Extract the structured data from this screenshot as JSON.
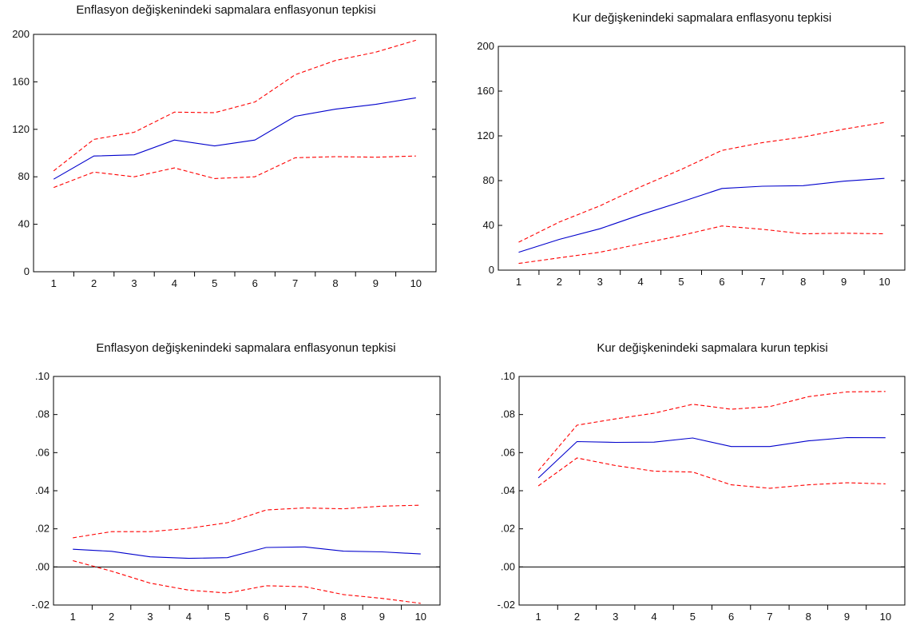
{
  "chart_data": [
    {
      "type": "line",
      "title": "Enflasyon değişkenindeki sapmalara enflasyonun   tepkisi",
      "xlabel": "",
      "ylabel": "",
      "x": [
        1,
        2,
        3,
        4,
        5,
        6,
        7,
        8,
        9,
        10
      ],
      "x_tick_labels": [
        "1",
        "2",
        "3",
        "4",
        "5",
        "6",
        "7",
        "8",
        "9",
        "10"
      ],
      "y_tick_labels": [
        "0",
        "40",
        "80",
        "120",
        "160",
        "200"
      ],
      "y_ticks": [
        0,
        40,
        80,
        120,
        160,
        200
      ],
      "ylim": [
        0,
        200
      ],
      "zero_line": false,
      "series": [
        {
          "role": "response",
          "color": "#0000cc",
          "dashed": false,
          "values": [
            78,
            97.5,
            98.5,
            111,
            106,
            111,
            131,
            137,
            141,
            146.5
          ]
        },
        {
          "role": "upper",
          "color": "#ff0000",
          "dashed": true,
          "values": [
            85,
            111.5,
            117.5,
            134.5,
            134,
            143,
            166,
            178,
            185,
            195
          ]
        },
        {
          "role": "lower",
          "color": "#ff0000",
          "dashed": true,
          "values": [
            71,
            84,
            80,
            87.5,
            78.5,
            80,
            96,
            97,
            96.5,
            97.5
          ]
        }
      ]
    },
    {
      "type": "line",
      "title": "Kur değişkenindeki sapmalara enflasyonu tepkisi",
      "xlabel": "",
      "ylabel": "",
      "x": [
        1,
        2,
        3,
        4,
        5,
        6,
        7,
        8,
        9,
        10
      ],
      "x_tick_labels": [
        "1",
        "2",
        "3",
        "4",
        "5",
        "6",
        "7",
        "8",
        "9",
        "10"
      ],
      "y_tick_labels": [
        "0",
        "40",
        "80",
        "120",
        "160",
        "200"
      ],
      "y_ticks": [
        0,
        40,
        80,
        120,
        160,
        200
      ],
      "ylim": [
        0,
        200
      ],
      "zero_line": false,
      "series": [
        {
          "role": "response",
          "color": "#0000cc",
          "dashed": false,
          "values": [
            16,
            27.5,
            37,
            49.5,
            61,
            73,
            75,
            75.5,
            79.5,
            82
          ]
        },
        {
          "role": "upper",
          "color": "#ff0000",
          "dashed": true,
          "values": [
            25,
            43,
            57.5,
            74.5,
            90,
            107,
            114,
            119,
            126,
            132
          ]
        },
        {
          "role": "lower",
          "color": "#ff0000",
          "dashed": true,
          "values": [
            6,
            11,
            16,
            23.5,
            31,
            39.5,
            36.5,
            32.5,
            33,
            32.5
          ]
        }
      ]
    },
    {
      "type": "line",
      "title": "Enflasyon değişkenindeki sapmalara enflasyonun tepkisi",
      "xlabel": "",
      "ylabel": "",
      "x": [
        1,
        2,
        3,
        4,
        5,
        6,
        7,
        8,
        9,
        10
      ],
      "x_tick_labels": [
        "1",
        "2",
        "3",
        "4",
        "5",
        "6",
        "7",
        "8",
        "9",
        "10"
      ],
      "y_tick_labels": [
        "-.02",
        ".00",
        ".02",
        ".04",
        ".06",
        ".08",
        ".10"
      ],
      "y_ticks": [
        -0.02,
        0,
        0.02,
        0.04,
        0.06,
        0.08,
        0.1
      ],
      "ylim": [
        -0.02,
        0.1
      ],
      "zero_line": true,
      "series": [
        {
          "role": "response",
          "color": "#0000cc",
          "dashed": false,
          "values": [
            0.0093,
            0.0082,
            0.0053,
            0.0045,
            0.0049,
            0.0102,
            0.0105,
            0.0083,
            0.0079,
            0.0068
          ]
        },
        {
          "role": "upper",
          "color": "#ff0000",
          "dashed": true,
          "values": [
            0.0153,
            0.0185,
            0.0185,
            0.0203,
            0.0232,
            0.0299,
            0.031,
            0.0305,
            0.0319,
            0.0324
          ]
        },
        {
          "role": "lower",
          "color": "#ff0000",
          "dashed": true,
          "values": [
            0.0033,
            -0.0022,
            -0.0085,
            -0.0122,
            -0.0137,
            -0.0099,
            -0.0104,
            -0.0145,
            -0.0165,
            -0.0191
          ]
        }
      ]
    },
    {
      "type": "line",
      "title": "Kur değişkenindeki sapmalara kurun tepkisi",
      "xlabel": "",
      "ylabel": "",
      "x": [
        1,
        2,
        3,
        4,
        5,
        6,
        7,
        8,
        9,
        10
      ],
      "x_tick_labels": [
        "1",
        "2",
        "3",
        "4",
        "5",
        "6",
        "7",
        "8",
        "9",
        "10"
      ],
      "y_tick_labels": [
        "-.02",
        ".00",
        ".02",
        ".04",
        ".06",
        ".08",
        ".10"
      ],
      "y_ticks": [
        -0.02,
        0,
        0.02,
        0.04,
        0.06,
        0.08,
        0.1
      ],
      "ylim": [
        -0.02,
        0.1
      ],
      "zero_line": true,
      "series": [
        {
          "role": "response",
          "color": "#0000cc",
          "dashed": false,
          "values": [
            0.0467,
            0.0658,
            0.0654,
            0.0655,
            0.0677,
            0.0632,
            0.0632,
            0.0662,
            0.0679,
            0.0678
          ]
        },
        {
          "role": "upper",
          "color": "#ff0000",
          "dashed": true,
          "values": [
            0.0505,
            0.0744,
            0.0777,
            0.0807,
            0.0854,
            0.0828,
            0.0842,
            0.0894,
            0.0919,
            0.0921
          ]
        },
        {
          "role": "lower",
          "color": "#ff0000",
          "dashed": true,
          "values": [
            0.0425,
            0.0572,
            0.0532,
            0.0503,
            0.0498,
            0.0431,
            0.0413,
            0.0431,
            0.0442,
            0.0436
          ]
        }
      ]
    }
  ]
}
